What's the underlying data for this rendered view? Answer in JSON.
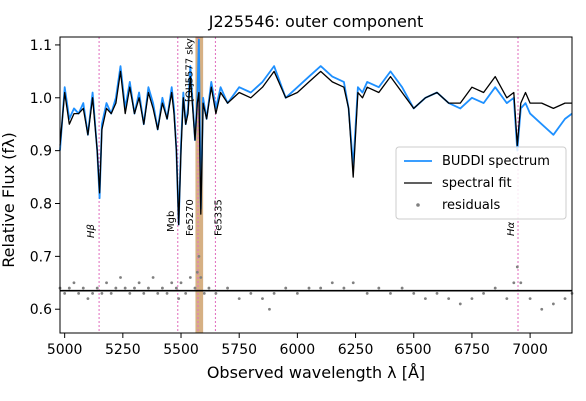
{
  "chart_data": {
    "type": "line",
    "title": "J225546: outer component",
    "xlabel": "Observed wavelength λ [Å]",
    "ylabel": "Relative Flux (fλ)",
    "xlim": [
      4980,
      7180
    ],
    "ylim": [
      0.555,
      1.115
    ],
    "xticks": [
      5000,
      5250,
      5500,
      5750,
      6000,
      6250,
      6500,
      6750,
      7000
    ],
    "yticks": [
      0.6,
      0.7,
      0.8,
      0.9,
      1.0,
      1.1
    ],
    "ytick_labels": [
      "0.6",
      "0.7",
      "0.8",
      "0.9",
      "1.0",
      "1.1"
    ],
    "grid": false,
    "legend_position": "center-right",
    "series": [
      {
        "name": "BUDDI spectrum",
        "style": "line",
        "color": "#1e90ff",
        "x": [
          4980,
          5000,
          5020,
          5040,
          5060,
          5080,
          5100,
          5120,
          5140,
          5150,
          5160,
          5180,
          5200,
          5220,
          5240,
          5260,
          5280,
          5300,
          5320,
          5340,
          5360,
          5380,
          5400,
          5420,
          5440,
          5460,
          5470,
          5480,
          5490,
          5500,
          5510,
          5520,
          5530,
          5540,
          5550,
          5560,
          5570,
          5577,
          5585,
          5595,
          5610,
          5630,
          5650,
          5670,
          5700,
          5750,
          5800,
          5850,
          5900,
          5950,
          6000,
          6050,
          6100,
          6150,
          6200,
          6220,
          6240,
          6260,
          6280,
          6300,
          6350,
          6400,
          6450,
          6500,
          6550,
          6600,
          6650,
          6700,
          6750,
          6800,
          6850,
          6900,
          6930,
          6945,
          6960,
          6980,
          7000,
          7050,
          7100,
          7150,
          7180
        ],
        "y": [
          0.9,
          1.02,
          0.96,
          0.98,
          0.97,
          0.99,
          0.93,
          1.01,
          0.9,
          0.81,
          0.95,
          0.99,
          0.97,
          1.0,
          1.06,
          0.98,
          1.03,
          0.97,
          1.01,
          0.95,
          1.02,
          0.99,
          0.94,
          1.0,
          0.96,
          1.02,
          0.98,
          0.9,
          0.76,
          0.91,
          1.01,
          0.95,
          0.98,
          1.06,
          0.99,
          0.92,
          1.0,
          1.11,
          0.79,
          1.0,
          0.96,
          1.03,
          0.98,
          1.02,
          0.99,
          1.02,
          1.01,
          1.03,
          1.06,
          1.0,
          1.02,
          1.04,
          1.06,
          1.04,
          1.03,
          0.98,
          0.87,
          1.02,
          1.01,
          1.03,
          1.02,
          1.05,
          1.02,
          0.98,
          1.0,
          1.01,
          0.99,
          0.98,
          1.0,
          0.99,
          1.02,
          0.99,
          1.0,
          0.9,
          0.98,
          0.99,
          0.97,
          0.95,
          0.93,
          0.96,
          0.97
        ]
      },
      {
        "name": "spectral fit",
        "style": "line",
        "color": "#000000",
        "x": [
          4980,
          5000,
          5020,
          5040,
          5060,
          5080,
          5100,
          5120,
          5140,
          5150,
          5160,
          5180,
          5200,
          5220,
          5240,
          5260,
          5280,
          5300,
          5320,
          5340,
          5360,
          5380,
          5400,
          5420,
          5440,
          5460,
          5470,
          5480,
          5490,
          5500,
          5510,
          5520,
          5530,
          5540,
          5550,
          5560,
          5570,
          5577,
          5585,
          5595,
          5610,
          5630,
          5650,
          5670,
          5700,
          5750,
          5800,
          5850,
          5900,
          5950,
          6000,
          6050,
          6100,
          6150,
          6200,
          6220,
          6240,
          6260,
          6280,
          6300,
          6350,
          6400,
          6450,
          6500,
          6550,
          6600,
          6650,
          6700,
          6750,
          6800,
          6850,
          6900,
          6930,
          6945,
          6960,
          6980,
          7000,
          7050,
          7100,
          7150,
          7180
        ],
        "y": [
          0.91,
          1.01,
          0.95,
          0.97,
          0.97,
          0.98,
          0.93,
          1.0,
          0.9,
          0.82,
          0.94,
          0.98,
          0.97,
          0.99,
          1.05,
          0.97,
          1.02,
          0.97,
          1.0,
          0.95,
          1.01,
          0.98,
          0.94,
          0.99,
          0.96,
          1.01,
          0.97,
          0.9,
          0.76,
          0.9,
          1.0,
          0.95,
          0.97,
          1.04,
          0.98,
          0.92,
          0.99,
          1.01,
          0.78,
          0.99,
          0.96,
          1.02,
          0.97,
          1.01,
          0.99,
          1.01,
          1.0,
          1.02,
          1.05,
          1.0,
          1.01,
          1.03,
          1.05,
          1.03,
          1.02,
          0.98,
          0.85,
          1.01,
          1.0,
          1.02,
          1.01,
          1.04,
          1.01,
          0.98,
          1.0,
          1.01,
          0.99,
          0.99,
          1.02,
          1.01,
          1.04,
          1.0,
          1.01,
          0.91,
          0.99,
          1.01,
          0.99,
          0.99,
          0.98,
          0.99,
          0.99
        ]
      },
      {
        "name": "residuals",
        "style": "scatter",
        "color": "#808080",
        "x": [
          4980,
          5000,
          5020,
          5040,
          5060,
          5080,
          5100,
          5120,
          5140,
          5160,
          5180,
          5200,
          5220,
          5240,
          5260,
          5280,
          5300,
          5320,
          5340,
          5360,
          5380,
          5400,
          5420,
          5440,
          5460,
          5480,
          5490,
          5500,
          5520,
          5540,
          5560,
          5570,
          5577,
          5585,
          5600,
          5620,
          5650,
          5700,
          5750,
          5800,
          5850,
          5880,
          5900,
          5950,
          6000,
          6050,
          6100,
          6150,
          6200,
          6240,
          6300,
          6350,
          6400,
          6450,
          6500,
          6550,
          6600,
          6650,
          6700,
          6750,
          6800,
          6850,
          6900,
          6930,
          6945,
          6960,
          7000,
          7050,
          7100,
          7150,
          7180
        ],
        "y": [
          0.64,
          0.63,
          0.64,
          0.65,
          0.63,
          0.64,
          0.62,
          0.63,
          0.64,
          0.63,
          0.65,
          0.63,
          0.64,
          0.66,
          0.64,
          0.63,
          0.64,
          0.65,
          0.63,
          0.64,
          0.66,
          0.63,
          0.64,
          0.63,
          0.65,
          0.64,
          0.62,
          0.65,
          0.63,
          0.66,
          0.64,
          0.67,
          0.7,
          0.66,
          0.63,
          0.64,
          0.63,
          0.64,
          0.62,
          0.63,
          0.62,
          0.6,
          0.63,
          0.64,
          0.63,
          0.64,
          0.64,
          0.65,
          0.64,
          0.65,
          0.63,
          0.64,
          0.63,
          0.64,
          0.63,
          0.62,
          0.63,
          0.62,
          0.61,
          0.62,
          0.63,
          0.64,
          0.62,
          0.65,
          0.68,
          0.65,
          0.62,
          0.6,
          0.61,
          0.62,
          0.63
        ]
      }
    ],
    "zero_line": {
      "y": 0.635,
      "color": "#000000"
    },
    "line_markers": [
      {
        "label": "Hβ",
        "x": 5148,
        "color": "#e377c2"
      },
      {
        "label": "Mgb",
        "x": 5486,
        "color": "#e377c2"
      },
      {
        "label": "Fe5270",
        "x": 5573,
        "color": "#e377c2"
      },
      {
        "label": "Fe5335",
        "x": 5648,
        "color": "#e377c2"
      },
      {
        "label": "Hα",
        "x": 6948,
        "color": "#e377c2"
      }
    ],
    "sky_band": {
      "label": "[OI]5577 sky",
      "x_from": 5562,
      "x_to": 5595,
      "color": "#c8955a"
    }
  }
}
